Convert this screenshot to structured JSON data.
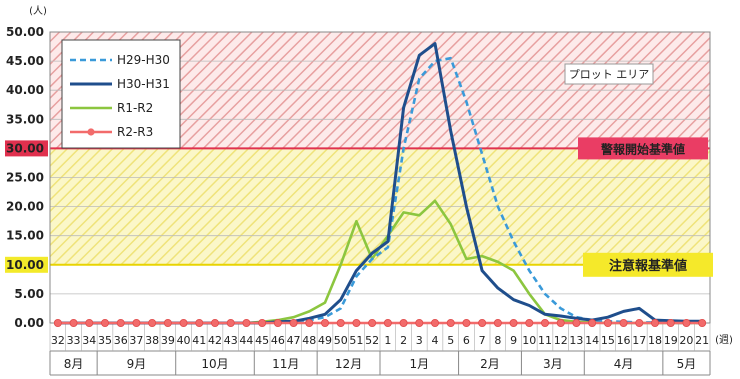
{
  "chart_data": {
    "type": "line",
    "y_unit": "(人)",
    "x_unit": "(週)",
    "ylim": [
      0,
      50
    ],
    "yticks": [
      "0.00",
      "5.00",
      "10.00",
      "15.00",
      "20.00",
      "25.00",
      "30.00",
      "35.00",
      "40.00",
      "45.00",
      "50.00"
    ],
    "weeks": [
      "32",
      "33",
      "34",
      "35",
      "36",
      "37",
      "38",
      "39",
      "40",
      "41",
      "42",
      "43",
      "44",
      "45",
      "46",
      "47",
      "48",
      "49",
      "50",
      "51",
      "52",
      "1",
      "2",
      "3",
      "4",
      "5",
      "6",
      "7",
      "8",
      "9",
      "10",
      "11",
      "12",
      "13",
      "14",
      "15",
      "16",
      "17",
      "18",
      "19",
      "20",
      "21"
    ],
    "months": [
      {
        "label": "8月",
        "span": 3
      },
      {
        "label": "9月",
        "span": 5
      },
      {
        "label": "10月",
        "span": 5
      },
      {
        "label": "11月",
        "span": 4
      },
      {
        "label": "12月",
        "span": 4
      },
      {
        "label": "1月",
        "span": 5
      },
      {
        "label": "2月",
        "span": 4
      },
      {
        "label": "3月",
        "span": 4
      },
      {
        "label": "4月",
        "span": 5
      },
      {
        "label": "5月",
        "span": 3
      }
    ],
    "warning_level": {
      "value": 30,
      "label": "警報開始基準値"
    },
    "caution_level": {
      "value": 10,
      "label": "注意報基準値"
    },
    "plot_area_label": "プロット エリア",
    "series": [
      {
        "name": "H29-H30",
        "color": "#3a9ad9",
        "dash": true,
        "values": [
          0,
          0,
          0,
          0,
          0,
          0,
          0,
          0,
          0,
          0,
          0,
          0,
          0,
          0,
          0.1,
          0.2,
          0.5,
          1,
          2.5,
          8,
          11,
          13,
          30,
          42,
          45,
          45.5,
          38,
          29,
          20,
          14,
          9,
          5,
          2.5,
          1,
          0.5,
          0.3,
          0.2,
          0.1,
          0.1,
          0.05,
          0,
          0
        ]
      },
      {
        "name": "H30-H31",
        "color": "#1f4e8c",
        "dash": false,
        "values": [
          0,
          0,
          0,
          0,
          0,
          0,
          0,
          0,
          0,
          0,
          0,
          0,
          0,
          0,
          0.2,
          0.3,
          0.8,
          1.5,
          4,
          9,
          12,
          14,
          37,
          46,
          48,
          33,
          20,
          9,
          6,
          4,
          3,
          1.5,
          1.2,
          0.8,
          0.5,
          1,
          2,
          2.5,
          0.5,
          0.4,
          0.3,
          0.3
        ]
      },
      {
        "name": "R1-R2",
        "color": "#8cc63f",
        "dash": false,
        "values": [
          0,
          0,
          0,
          0,
          0,
          0,
          0,
          0,
          0,
          0,
          0,
          0,
          0,
          0.2,
          0.5,
          1,
          2,
          3.5,
          10,
          17.5,
          11,
          15,
          19,
          18.5,
          21,
          17,
          11,
          11.5,
          10.5,
          9,
          5,
          1.5,
          0.5,
          0.2,
          0.1,
          0,
          0,
          0,
          0,
          0,
          0,
          0
        ]
      },
      {
        "name": "R2-R3",
        "color": "#f26b6b",
        "dash": false,
        "marker": true,
        "values": [
          0,
          0,
          0,
          0,
          0,
          0,
          0,
          0,
          0,
          0,
          0,
          0,
          0,
          0,
          0,
          0,
          0,
          0,
          0,
          0,
          0,
          0,
          0,
          0,
          0,
          0,
          0,
          0,
          0,
          0,
          0,
          0,
          0,
          0,
          0,
          0,
          0,
          0,
          0,
          0,
          0,
          0
        ]
      }
    ]
  }
}
